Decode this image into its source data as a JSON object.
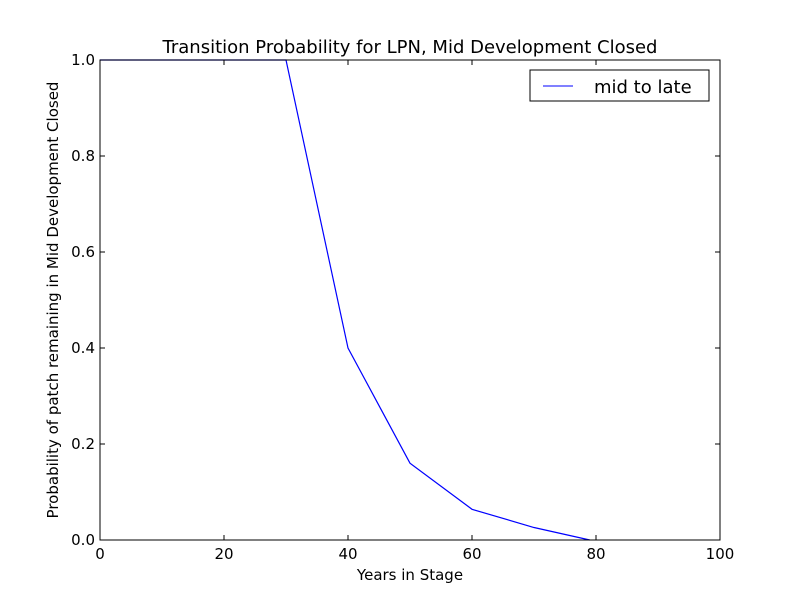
{
  "chart_data": {
    "type": "line",
    "title": "Transition Probability for LPN, Mid Development Closed",
    "xlabel": "Years in Stage",
    "ylabel": "Probability of patch remaining in Mid Development Closed",
    "xlim": [
      0,
      100
    ],
    "ylim": [
      0.0,
      1.0
    ],
    "x_ticks": [
      0,
      20,
      40,
      60,
      80,
      100
    ],
    "x_tick_labels": [
      "0",
      "20",
      "40",
      "60",
      "80",
      "100"
    ],
    "y_ticks": [
      0.0,
      0.2,
      0.4,
      0.6,
      0.8,
      1.0
    ],
    "y_tick_labels": [
      "0.0",
      "0.2",
      "0.4",
      "0.6",
      "0.8",
      "1.0"
    ],
    "grid": false,
    "legend_position": "top-right",
    "series": [
      {
        "name": "mid to late",
        "color": "#0000ff",
        "x": [
          0,
          30,
          40,
          50,
          60,
          70,
          79
        ],
        "y": [
          1.0,
          1.0,
          0.4,
          0.16,
          0.064,
          0.026,
          0.0
        ]
      }
    ]
  }
}
